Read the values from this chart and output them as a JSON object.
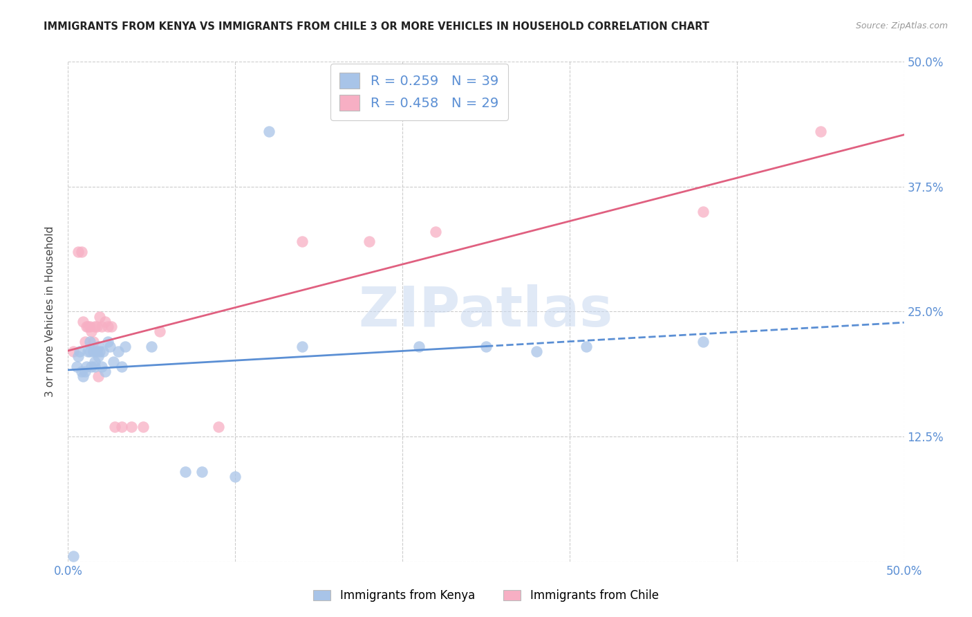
{
  "title": "IMMIGRANTS FROM KENYA VS IMMIGRANTS FROM CHILE 3 OR MORE VEHICLES IN HOUSEHOLD CORRELATION CHART",
  "source": "Source: ZipAtlas.com",
  "ylabel": "3 or more Vehicles in Household",
  "xlim": [
    0.0,
    0.5
  ],
  "ylim": [
    0.0,
    0.5
  ],
  "xtick_positions": [
    0.0,
    0.1,
    0.2,
    0.3,
    0.4,
    0.5
  ],
  "xtick_labels": [
    "0.0%",
    "",
    "",
    "",
    "",
    "50.0%"
  ],
  "ytick_positions": [
    0.0,
    0.125,
    0.25,
    0.375,
    0.5
  ],
  "ytick_labels_right": [
    "",
    "12.5%",
    "25.0%",
    "37.5%",
    "50.0%"
  ],
  "legend_kenya_R": "0.259",
  "legend_kenya_N": "39",
  "legend_chile_R": "0.458",
  "legend_chile_N": "29",
  "kenya_color": "#a8c4e8",
  "chile_color": "#f7afc4",
  "kenya_line_color": "#5b8fd4",
  "chile_line_color": "#e06080",
  "kenya_x": [
    0.003,
    0.005,
    0.006,
    0.007,
    0.008,
    0.009,
    0.01,
    0.011,
    0.012,
    0.013,
    0.013,
    0.014,
    0.015,
    0.016,
    0.016,
    0.017,
    0.018,
    0.018,
    0.019,
    0.02,
    0.021,
    0.022,
    0.024,
    0.025,
    0.027,
    0.03,
    0.032,
    0.034,
    0.05,
    0.07,
    0.08,
    0.1,
    0.12,
    0.14,
    0.21,
    0.25,
    0.28,
    0.31,
    0.38
  ],
  "kenya_y": [
    0.005,
    0.195,
    0.205,
    0.21,
    0.19,
    0.185,
    0.19,
    0.195,
    0.21,
    0.21,
    0.22,
    0.195,
    0.21,
    0.2,
    0.195,
    0.21,
    0.205,
    0.215,
    0.21,
    0.195,
    0.21,
    0.19,
    0.22,
    0.215,
    0.2,
    0.21,
    0.195,
    0.215,
    0.215,
    0.09,
    0.09,
    0.085,
    0.43,
    0.215,
    0.215,
    0.215,
    0.21,
    0.215,
    0.22
  ],
  "chile_x": [
    0.003,
    0.006,
    0.008,
    0.009,
    0.01,
    0.011,
    0.012,
    0.013,
    0.014,
    0.015,
    0.016,
    0.017,
    0.018,
    0.019,
    0.02,
    0.022,
    0.024,
    0.026,
    0.028,
    0.032,
    0.038,
    0.045,
    0.055,
    0.09,
    0.14,
    0.18,
    0.22,
    0.38,
    0.45
  ],
  "chile_y": [
    0.21,
    0.31,
    0.31,
    0.24,
    0.22,
    0.235,
    0.235,
    0.235,
    0.23,
    0.22,
    0.235,
    0.235,
    0.185,
    0.245,
    0.235,
    0.24,
    0.235,
    0.235,
    0.135,
    0.135,
    0.135,
    0.135,
    0.23,
    0.135,
    0.32,
    0.32,
    0.33,
    0.35,
    0.43
  ],
  "background_color": "#ffffff",
  "grid_color": "#cccccc",
  "tick_color": "#5b8fd4"
}
